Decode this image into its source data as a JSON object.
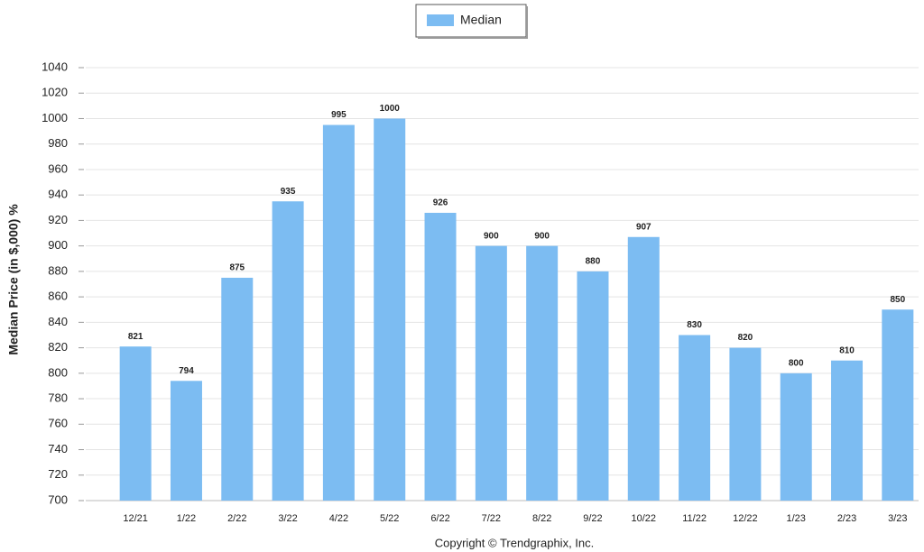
{
  "chart_data": {
    "type": "bar",
    "y_label": "Median Price (in $,000) %",
    "footer": "Copyright © Trendgraphix, Inc.",
    "categories": [
      "12/21",
      "1/22",
      "2/22",
      "3/22",
      "4/22",
      "5/22",
      "6/22",
      "7/22",
      "8/22",
      "9/22",
      "10/22",
      "11/22",
      "12/22",
      "1/23",
      "2/23",
      "3/23"
    ],
    "series": [
      {
        "name": "Median",
        "color": "#7cbcf2",
        "values": [
          821,
          794,
          875,
          935,
          995,
          1000,
          926,
          900,
          900,
          880,
          907,
          830,
          820,
          800,
          810,
          850
        ]
      }
    ],
    "ylim": [
      700,
      1040
    ],
    "yticks": [
      700,
      720,
      740,
      760,
      780,
      800,
      820,
      840,
      860,
      880,
      900,
      920,
      940,
      960,
      980,
      1000,
      1020,
      1040
    ],
    "grid": true,
    "legend": "top"
  }
}
